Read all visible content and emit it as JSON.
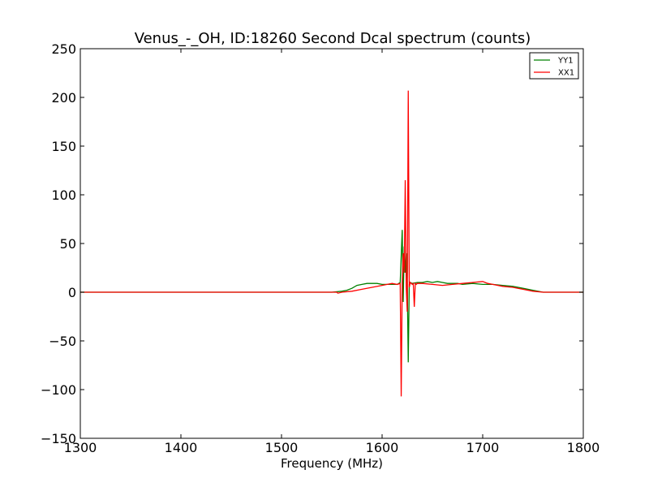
{
  "chart_data": {
    "type": "line",
    "title": "Venus_-_OH, ID:18260 Second Dcal spectrum (counts)",
    "xlabel": "Frequency (MHz)",
    "ylabel": "",
    "xlim": [
      1300,
      1800
    ],
    "ylim": [
      -150,
      250
    ],
    "xticks": [
      1300,
      1400,
      1500,
      1600,
      1700,
      1800
    ],
    "yticks": [
      -150,
      -100,
      -50,
      0,
      50,
      100,
      150,
      200,
      250
    ],
    "xtick_labels": [
      "1300",
      "1400",
      "1500",
      "1600",
      "1700",
      "1800"
    ],
    "ytick_labels": [
      "−150",
      "−100",
      "−50",
      "0",
      "50",
      "100",
      "150",
      "200",
      "250"
    ],
    "grid": false,
    "legend_position": "top-right",
    "series": [
      {
        "name": "YY1",
        "color": "#008000",
        "x": [
          1300,
          1400,
          1500,
          1550,
          1560,
          1565,
          1570,
          1575,
          1580,
          1585,
          1590,
          1595,
          1600,
          1605,
          1610,
          1615,
          1618,
          1620,
          1621,
          1622,
          1623,
          1624,
          1625,
          1626,
          1627,
          1628,
          1630,
          1635,
          1640,
          1645,
          1650,
          1655,
          1660,
          1665,
          1670,
          1675,
          1680,
          1690,
          1700,
          1710,
          1720,
          1730,
          1740,
          1750,
          1760,
          1770,
          1800
        ],
        "y": [
          0,
          0,
          0,
          0,
          1,
          2,
          4,
          7,
          8,
          9,
          9,
          9,
          8,
          8,
          8,
          8,
          10,
          64,
          -10,
          47,
          20,
          40,
          10,
          -72,
          8,
          10,
          9,
          10,
          10,
          11,
          10,
          11,
          10,
          9,
          9,
          9,
          8,
          9,
          8,
          8,
          7,
          6,
          4,
          2,
          0,
          0,
          0
        ]
      },
      {
        "name": "XX1",
        "color": "#ff0000",
        "x": [
          1300,
          1400,
          1500,
          1550,
          1555,
          1556,
          1560,
          1570,
          1580,
          1590,
          1600,
          1605,
          1610,
          1615,
          1618,
          1619,
          1620,
          1621,
          1622,
          1623,
          1624,
          1625,
          1626,
          1627,
          1628,
          1630,
          1631,
          1632,
          1633,
          1634,
          1635,
          1640,
          1650,
          1660,
          1670,
          1680,
          1690,
          1700,
          1705,
          1710,
          1720,
          1730,
          1740,
          1750,
          1760,
          1770,
          1800
        ],
        "y": [
          0,
          0,
          0,
          0,
          0,
          -1,
          0,
          1,
          3,
          5,
          7,
          8,
          9,
          8,
          9,
          -107,
          10,
          40,
          20,
          115,
          5,
          -20,
          207,
          5,
          10,
          8,
          9,
          -15,
          9,
          8,
          9,
          9,
          8,
          7,
          8,
          9,
          10,
          11,
          9,
          8,
          6,
          5,
          3,
          1,
          0,
          0,
          0
        ]
      }
    ]
  }
}
